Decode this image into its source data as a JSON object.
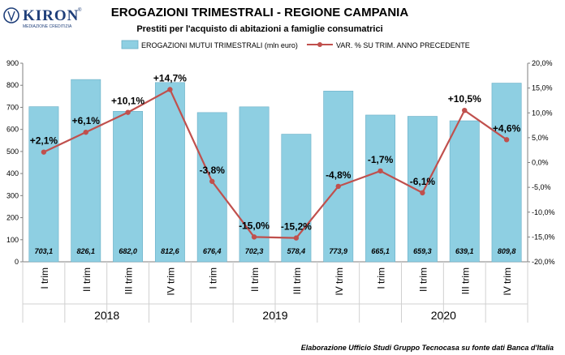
{
  "brand": {
    "name": "KIRON",
    "registered_mark": "®",
    "tagline": "MEDIAZIONE CREDITIZIA"
  },
  "colors": {
    "bar_fill": "#8ecfe2",
    "bar_stroke": "#6aaec6",
    "line": "#c0504d",
    "brand": "#1f3f7a",
    "axis": "#7f7f7f",
    "grid": "#d0d0d0"
  },
  "chart_data": {
    "type": "bar+line",
    "title": "EROGAZIONI TRIMESTRALI - REGIONE CAMPANIA",
    "subtitle": "Prestiti per l'acquisto di abitazioni a famiglie consumatrici",
    "categories": [
      "I trim",
      "II trim",
      "III trim",
      "IV trim",
      "I trim",
      "II trim",
      "III trim",
      "IV trim",
      "I trim",
      "II trim",
      "III trim",
      "IV trim"
    ],
    "years": [
      {
        "label": "2018",
        "start": 0,
        "end": 3
      },
      {
        "label": "2019",
        "start": 4,
        "end": 7
      },
      {
        "label": "2020",
        "start": 8,
        "end": 11
      }
    ],
    "series": [
      {
        "name": "EROGAZIONI MUTUI TRIMESTRALI (mln euro)",
        "type": "bar",
        "axis": "left",
        "values": [
          703.1,
          826.1,
          682.0,
          812.6,
          676.4,
          702.3,
          578.4,
          773.9,
          665.1,
          659.3,
          639.1,
          809.8
        ],
        "labels": [
          "703,1",
          "826,1",
          "682,0",
          "812,6",
          "676,4",
          "702,3",
          "578,4",
          "773,9",
          "665,1",
          "659,3",
          "639,1",
          "809,8"
        ]
      },
      {
        "name": "VAR. % SU TRIM. ANNO PRECEDENTE",
        "type": "line",
        "axis": "right",
        "values": [
          2.1,
          6.1,
          10.1,
          14.7,
          -3.8,
          -15.0,
          -15.2,
          -4.8,
          -1.7,
          -6.1,
          10.5,
          4.6
        ],
        "labels": [
          "+2,1%",
          "+6,1%",
          "+10,1%",
          "+14,7%",
          "-3,8%",
          "-15,0%",
          "-15,2%",
          "-4,8%",
          "-1,7%",
          "-6,1%",
          "+10,5%",
          "+4,6%"
        ]
      }
    ],
    "y_left": {
      "min": 0,
      "max": 900,
      "step": 100,
      "ticks": [
        "0",
        "100",
        "200",
        "300",
        "400",
        "500",
        "600",
        "700",
        "800",
        "900"
      ]
    },
    "y_right": {
      "min": -20,
      "max": 20,
      "step": 5,
      "ticks": [
        "-20,0%",
        "-15,0%",
        "-10,0%",
        "-5,0%",
        "0,0%",
        "5,0%",
        "10,0%",
        "15,0%",
        "20,0%"
      ]
    },
    "grid": false,
    "legend_position": "top"
  },
  "footer": {
    "source": "Elaborazione Ufficio Studi Gruppo Tecnocasa su fonte dati Banca d'Italia"
  }
}
